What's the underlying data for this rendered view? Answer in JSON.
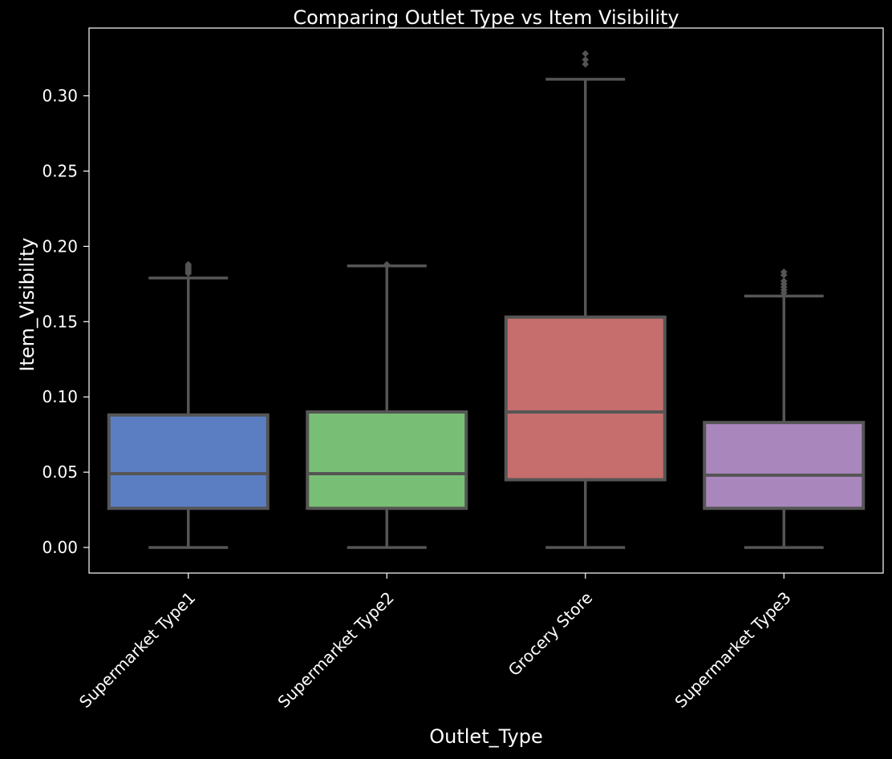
{
  "chart_data": {
    "type": "box",
    "title": "Comparing  Outlet Type vs Item Visibility",
    "xlabel": "Outlet_Type",
    "ylabel": "Item_Visibility",
    "ylim": [
      -0.017,
      0.345
    ],
    "yticks": [
      0.0,
      0.05,
      0.1,
      0.15,
      0.2,
      0.25,
      0.3
    ],
    "ytick_labels": [
      "0.00",
      "0.05",
      "0.10",
      "0.15",
      "0.20",
      "0.25",
      "0.30"
    ],
    "grid": false,
    "categories": [
      "Supermarket Type1",
      "Supermarket Type2",
      "Grocery Store",
      "Supermarket Type3"
    ],
    "boxes": [
      {
        "category": "Supermarket Type1",
        "color": "#5b7ec2",
        "whisker_low": 0.0,
        "q1": 0.026,
        "median": 0.049,
        "q3": 0.088,
        "whisker_high": 0.179,
        "outliers": [
          0.182,
          0.183,
          0.184,
          0.185,
          0.186,
          0.187,
          0.188
        ]
      },
      {
        "category": "Supermarket Type2",
        "color": "#78bf75",
        "whisker_low": 0.0,
        "q1": 0.026,
        "median": 0.049,
        "q3": 0.09,
        "whisker_high": 0.187,
        "outliers": [
          0.188
        ]
      },
      {
        "category": "Grocery Store",
        "color": "#c56e6d",
        "whisker_low": 0.0,
        "q1": 0.045,
        "median": 0.09,
        "q3": 0.153,
        "whisker_high": 0.311,
        "outliers": [
          0.321,
          0.324,
          0.328
        ]
      },
      {
        "category": "Supermarket Type3",
        "color": "#a987bd",
        "whisker_low": 0.0,
        "q1": 0.026,
        "median": 0.048,
        "q3": 0.083,
        "whisker_high": 0.167,
        "outliers": [
          0.169,
          0.171,
          0.173,
          0.175,
          0.177,
          0.181,
          0.183
        ]
      }
    ],
    "line_color": "#555555",
    "axes_color": "#ffffff",
    "background": "#000000"
  }
}
